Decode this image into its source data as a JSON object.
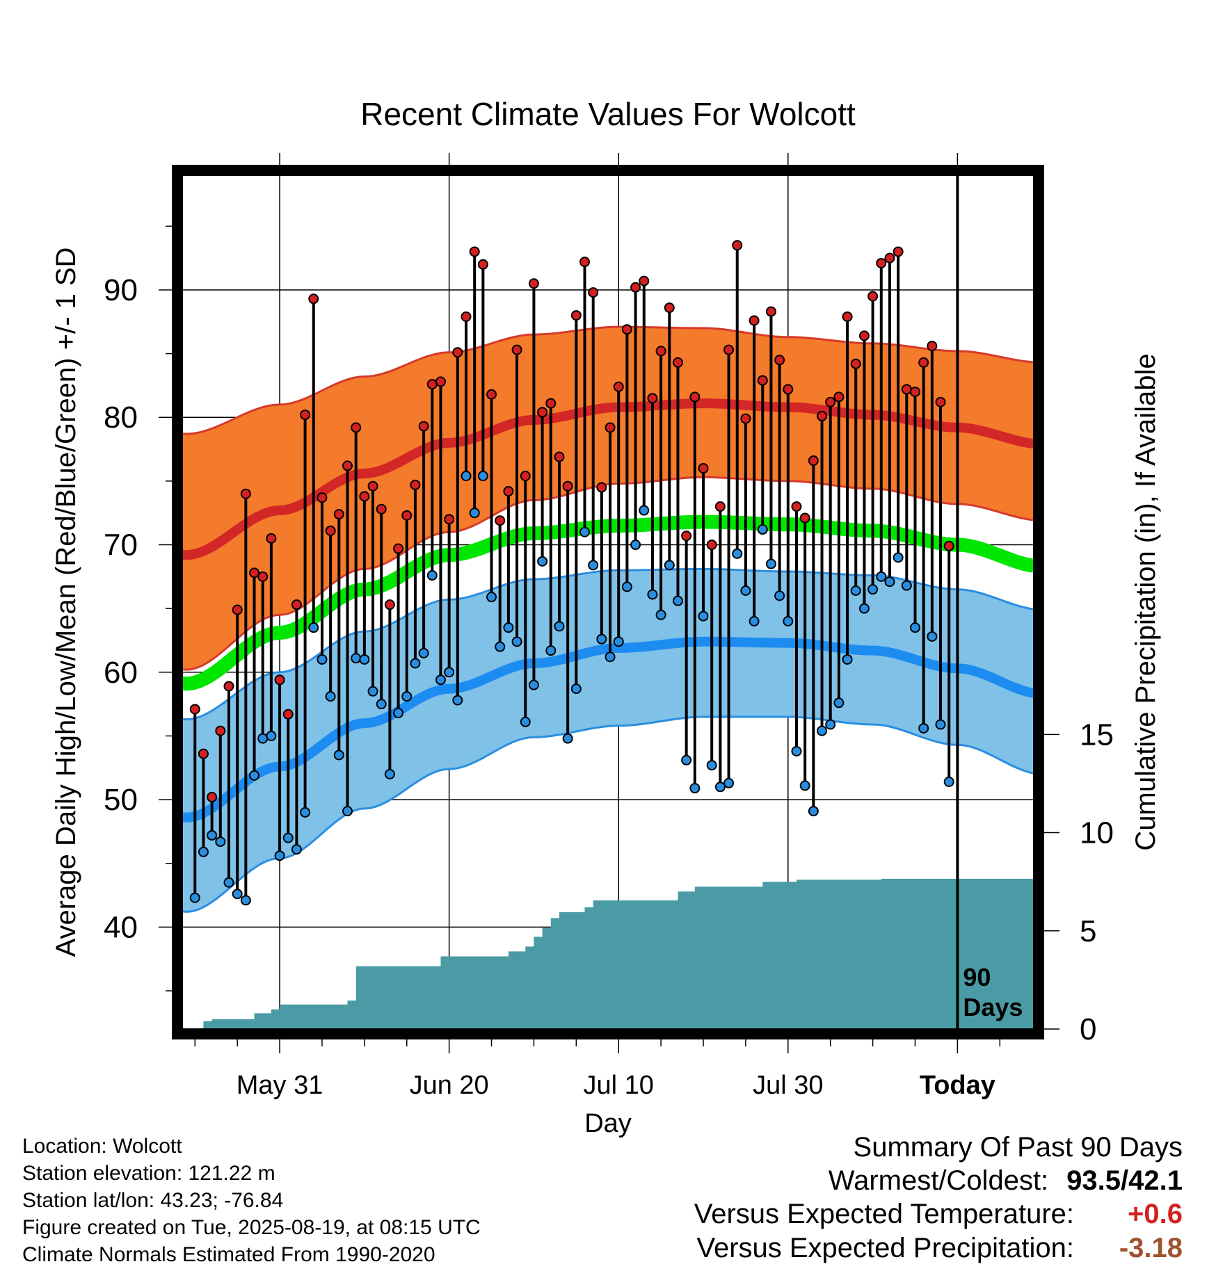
{
  "chart_data": {
    "type": "line",
    "title": "Recent Climate Values For Wolcott",
    "xlabel": "Day",
    "ylabel_left": "Average Daily High/Low/Mean (Red/Blue/Green) +/- 1 SD",
    "ylabel_right": "Cumulative Precipitation (in), If Available",
    "x_ticks": [
      "May 31",
      "Jun 20",
      "Jul 10",
      "Jul 30",
      "Today"
    ],
    "x_tick_days": [
      10,
      30,
      50,
      70,
      90
    ],
    "xlim": [
      -1.5,
      99
    ],
    "ylim_left": [
      32,
      99
    ],
    "y_ticks_left": [
      40,
      50,
      60,
      70,
      80,
      90
    ],
    "ylim_right": [
      0,
      15
    ],
    "y_ticks_right": [
      0,
      5,
      10,
      15
    ],
    "today_marker_label_1": "90",
    "today_marker_label_2": "Days",
    "grid": true,
    "colors": {
      "high_band": "#f47a2c",
      "high_band_edge": "#d63a2a",
      "high_mean": "#d32626",
      "low_band": "#80c1e8",
      "low_band_edge": "#2a8ee0",
      "low_mean": "#1d8cf0",
      "mean": "#00e600",
      "precip": "#4a9ba5",
      "high_dot": "#d42020",
      "low_dot": "#2a8ee0"
    },
    "normals_high": {
      "days": [
        -1,
        10,
        20,
        30,
        40,
        50,
        60,
        70,
        80,
        90,
        100
      ],
      "values": [
        69.2,
        72.7,
        75.6,
        78.0,
        79.8,
        80.8,
        81.1,
        80.8,
        80.2,
        79.2,
        77.9
      ]
    },
    "normals_high_sd_upper": {
      "days": [
        -1,
        10,
        20,
        30,
        40,
        50,
        60,
        70,
        80,
        90,
        100
      ],
      "values": [
        78.7,
        81.0,
        83.2,
        85.1,
        86.5,
        87.1,
        87.0,
        86.3,
        85.8,
        85.2,
        84.3
      ]
    },
    "normals_high_sd_lower": {
      "days": [
        -1,
        10,
        20,
        30,
        40,
        50,
        60,
        70,
        80,
        90,
        100
      ],
      "values": [
        60.2,
        64.5,
        68.1,
        71.0,
        73.5,
        74.8,
        75.3,
        75.0,
        74.4,
        73.2,
        71.9
      ]
    },
    "normals_low": {
      "days": [
        -1,
        10,
        20,
        30,
        40,
        50,
        60,
        70,
        80,
        90,
        100
      ],
      "values": [
        48.6,
        52.6,
        56.0,
        58.7,
        60.7,
        61.9,
        62.4,
        62.3,
        61.7,
        60.3,
        58.3
      ]
    },
    "normals_low_sd_upper": {
      "days": [
        -1,
        10,
        20,
        30,
        40,
        50,
        60,
        70,
        80,
        90,
        100
      ],
      "values": [
        56.3,
        60.0,
        63.2,
        65.7,
        67.3,
        68.0,
        68.1,
        67.9,
        67.6,
        66.5,
        64.9
      ]
    },
    "normals_low_sd_lower": {
      "days": [
        -1,
        10,
        20,
        30,
        40,
        50,
        60,
        70,
        80,
        90,
        100
      ],
      "values": [
        41.2,
        45.4,
        49.3,
        52.4,
        54.9,
        55.8,
        56.5,
        56.5,
        55.9,
        54.3,
        52.0
      ]
    },
    "normals_mean": {
      "days": [
        -1,
        10,
        20,
        30,
        40,
        50,
        60,
        70,
        80,
        90,
        100
      ],
      "values": [
        59.1,
        63.1,
        66.5,
        69.2,
        70.9,
        71.5,
        71.8,
        71.6,
        71.1,
        70.0,
        68.3
      ]
    },
    "daily_high": [
      57.1,
      53.6,
      50.2,
      55.4,
      58.9,
      64.9,
      74.0,
      67.8,
      67.5,
      70.5,
      59.4,
      56.7,
      65.3,
      80.2,
      89.3,
      73.7,
      71.1,
      72.4,
      76.2,
      79.2,
      73.8,
      74.6,
      72.8,
      65.3,
      69.7,
      72.3,
      74.7,
      79.3,
      82.6,
      82.8,
      72.0,
      85.1,
      87.9,
      93.0,
      92.0,
      81.8,
      71.9,
      74.2,
      85.3,
      75.4,
      90.5,
      80.4,
      81.1,
      76.9,
      74.6,
      88.0,
      92.2,
      89.8,
      74.5,
      79.2,
      82.4,
      86.9,
      90.2,
      90.7,
      81.5,
      85.2,
      88.6,
      84.3,
      70.7,
      81.6,
      76.0,
      70.0,
      73.0,
      85.3,
      93.5,
      79.9,
      87.6,
      82.9,
      88.3,
      84.5,
      82.2,
      73.0,
      72.1,
      76.6,
      80.1,
      81.2,
      81.6,
      87.9,
      84.2,
      86.4,
      89.5,
      92.1,
      92.5,
      93.0,
      82.2,
      82.0,
      84.3,
      85.6,
      81.2,
      69.9
    ],
    "daily_low": [
      42.3,
      45.9,
      47.2,
      46.7,
      43.5,
      42.6,
      42.1,
      51.9,
      54.8,
      55.0,
      45.6,
      47.0,
      46.1,
      49.0,
      63.5,
      61.0,
      58.1,
      53.5,
      49.1,
      61.1,
      61.0,
      58.5,
      57.5,
      52.0,
      56.8,
      58.1,
      60.7,
      61.5,
      67.6,
      59.4,
      60.0,
      57.8,
      75.4,
      72.5,
      75.4,
      65.9,
      62.0,
      63.5,
      62.4,
      56.1,
      59.0,
      68.7,
      61.7,
      63.6,
      54.8,
      58.7,
      71.0,
      68.4,
      62.6,
      61.2,
      62.4,
      66.7,
      70.0,
      72.7,
      66.1,
      64.5,
      68.4,
      65.6,
      53.1,
      50.9,
      64.4,
      52.7,
      51.0,
      51.3,
      69.3,
      66.4,
      64.0,
      71.2,
      68.5,
      66.0,
      64.0,
      53.8,
      51.1,
      49.1,
      55.4,
      55.9,
      57.6,
      61.0,
      66.4,
      65.0,
      66.5,
      67.5,
      67.1,
      69.0,
      66.8,
      63.5,
      55.6,
      62.8,
      55.9,
      51.4
    ],
    "cumulative_precip": {
      "days": [
        -1,
        1,
        2,
        3,
        7,
        9,
        10,
        16,
        18,
        19,
        28,
        29,
        36,
        37,
        39,
        40,
        41,
        42,
        43,
        46,
        47,
        56,
        57,
        59,
        66,
        67,
        71,
        81,
        99
      ],
      "values": [
        0.0,
        0.4,
        0.5,
        0.5,
        0.8,
        1.0,
        1.25,
        1.25,
        1.45,
        3.2,
        3.2,
        3.7,
        3.7,
        3.95,
        4.2,
        4.7,
        5.15,
        5.65,
        5.95,
        6.2,
        6.55,
        6.55,
        7.0,
        7.25,
        7.25,
        7.5,
        7.6,
        7.65,
        7.65
      ]
    }
  },
  "info": {
    "location": "Location: Wolcott",
    "elevation": "Station elevation: 121.22 m",
    "latlon": "Station lat/lon: 43.23; -76.84",
    "created": "Figure created on Tue, 2025-08-19, at 08:15 UTC",
    "normals": "Climate Normals Estimated From 1990-2020"
  },
  "summary": {
    "title": "Summary Of Past 90 Days",
    "warmest_label": "Warmest/Coldest:",
    "warmest_value": "93.5/42.1",
    "temp_label": "Versus Expected Temperature:",
    "temp_value": "+0.6",
    "temp_color": "#d42020",
    "precip_label": "Versus Expected Precipitation:",
    "precip_value": "-3.18",
    "precip_color": "#a0522d"
  }
}
